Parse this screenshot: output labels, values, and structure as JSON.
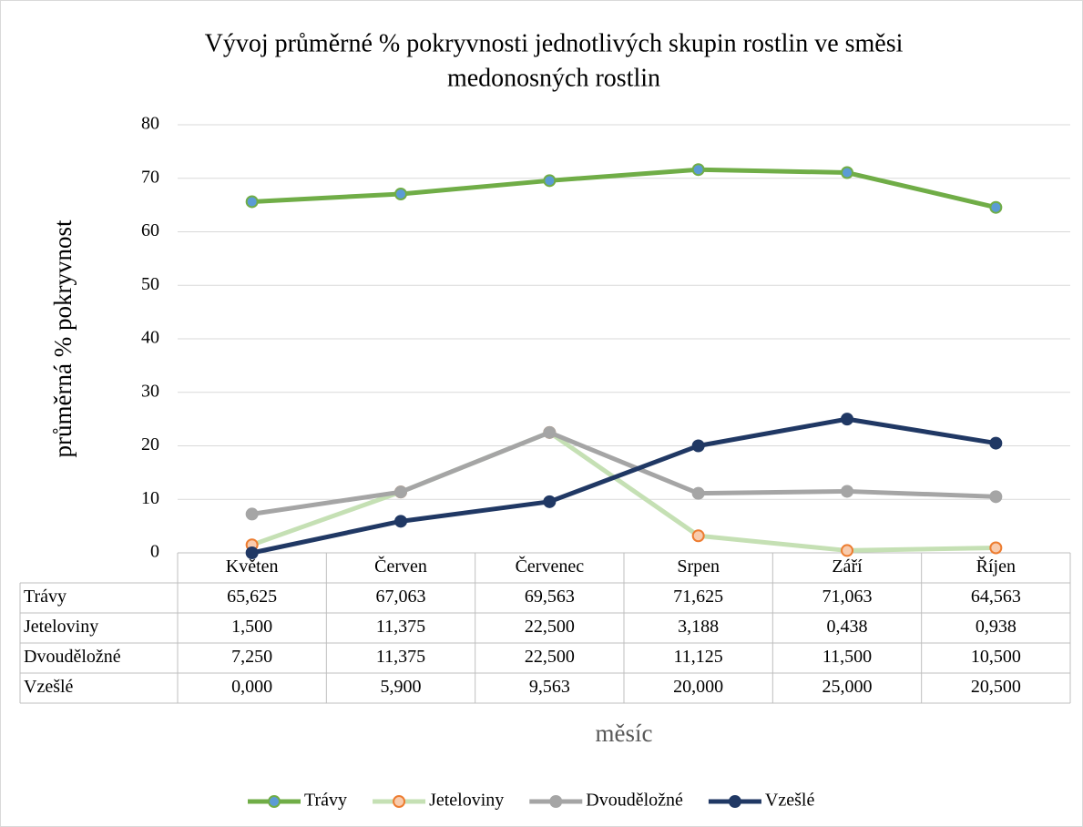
{
  "chart_data": {
    "type": "line",
    "title": [
      "Vývoj průměrné % pokryvnosti jednotlivých skupin rostlin ve směsi",
      "medonosných rostlin"
    ],
    "ylabel": "průměrná % pokryvnost",
    "xlabel": "měsíc",
    "categories": [
      "Květen",
      "Červen",
      "Červenec",
      "Srpen",
      "Září",
      "Říjen"
    ],
    "ylim": [
      0,
      80
    ],
    "yticks": [
      0,
      10,
      20,
      30,
      40,
      50,
      60,
      70,
      80
    ],
    "grid": true,
    "legend": "bottom",
    "series": [
      {
        "name": "Trávy",
        "color": "#70ad47",
        "marker_fill": "#5b9bd5",
        "marker_edge": "#70ad47",
        "values": [
          65.625,
          67.063,
          69.563,
          71.625,
          71.063,
          64.563
        ],
        "value_labels": [
          "65,625",
          "67,063",
          "69,563",
          "71,625",
          "71,063",
          "64,563"
        ]
      },
      {
        "name": "Jeteloviny",
        "color": "#c5e0b4",
        "marker_fill": "#f8cbad",
        "marker_edge": "#ed7d31",
        "values": [
          1.5,
          11.375,
          22.5,
          3.188,
          0.438,
          0.938
        ],
        "value_labels": [
          "1,500",
          "11,375",
          "22,500",
          "3,188",
          "0,438",
          "0,938"
        ]
      },
      {
        "name": "Dvouděložné",
        "color": "#a5a5a5",
        "marker_fill": "#a5a5a5",
        "marker_edge": "#a5a5a5",
        "values": [
          7.25,
          11.375,
          22.5,
          11.125,
          11.5,
          10.5
        ],
        "value_labels": [
          "7,250",
          "11,375",
          "22,500",
          "11,125",
          "11,500",
          "10,500"
        ]
      },
      {
        "name": "Vzešlé",
        "color": "#203864",
        "marker_fill": "#203864",
        "marker_edge": "#203864",
        "values": [
          0,
          5.9,
          9.563,
          20,
          25,
          20.5
        ],
        "value_labels": [
          "0,000",
          "5,900",
          "9,563",
          "20,000",
          "25,000",
          "20,500"
        ]
      }
    ]
  }
}
